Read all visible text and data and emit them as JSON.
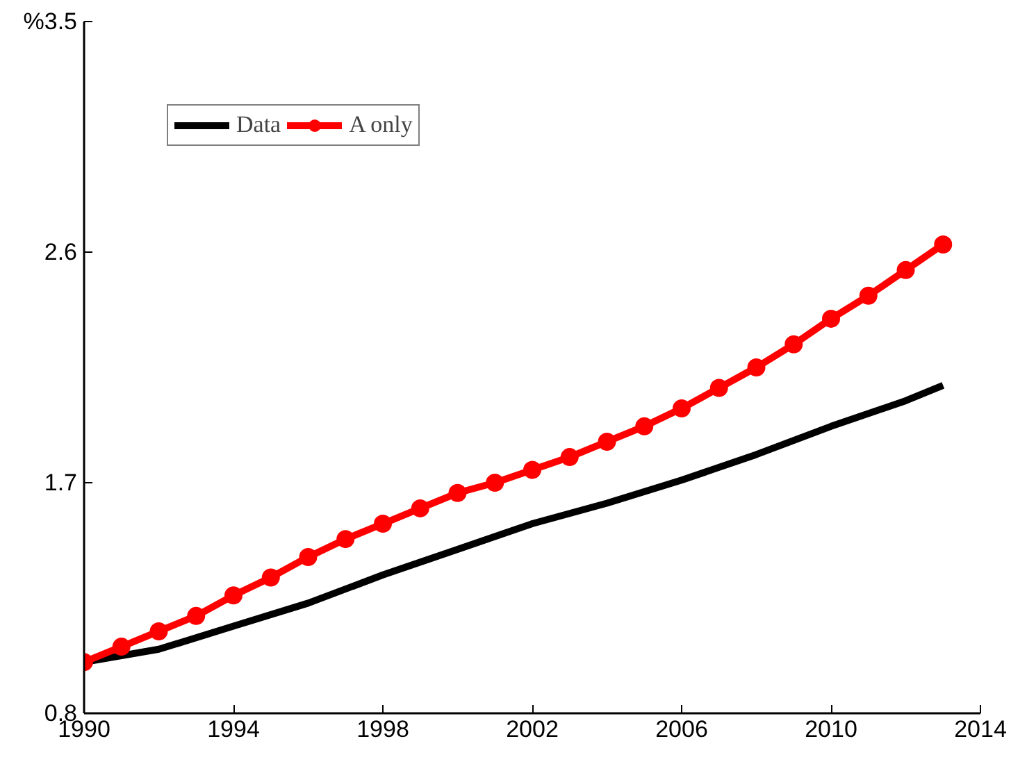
{
  "chart_data": {
    "type": "line",
    "x": [
      1990,
      1991,
      1992,
      1993,
      1994,
      1995,
      1996,
      1997,
      1998,
      1999,
      2000,
      2001,
      2002,
      2003,
      2004,
      2005,
      2006,
      2007,
      2008,
      2009,
      2010,
      2011,
      2012,
      2013
    ],
    "series": [
      {
        "name": "Data",
        "color": "#000000",
        "marker": "none",
        "x": [
          1990,
          1992,
          1994,
          1996,
          1998,
          2000,
          2002,
          2004,
          2006,
          2008,
          2010,
          2012,
          2013
        ],
        "values": [
          1.0,
          1.05,
          1.14,
          1.23,
          1.34,
          1.44,
          1.54,
          1.62,
          1.71,
          1.81,
          1.92,
          2.02,
          2.08
        ]
      },
      {
        "name": "A only",
        "color": "#ff0000",
        "marker": "circle",
        "values": [
          1.0,
          1.06,
          1.12,
          1.18,
          1.26,
          1.33,
          1.41,
          1.48,
          1.54,
          1.6,
          1.66,
          1.7,
          1.75,
          1.8,
          1.86,
          1.92,
          1.99,
          2.07,
          2.15,
          2.24,
          2.34,
          2.43,
          2.53,
          2.63
        ]
      }
    ],
    "xlim": [
      1990,
      2014
    ],
    "xticks": [
      1990,
      1994,
      1998,
      2002,
      2006,
      2010,
      2014
    ],
    "ylim": [
      0.8,
      3.5
    ],
    "yticks": [
      0.8,
      1.7,
      2.6,
      {
        "value": 3.5,
        "label": "%3.5"
      }
    ],
    "grid": false,
    "legend": "top left",
    "line_style": "solid"
  }
}
